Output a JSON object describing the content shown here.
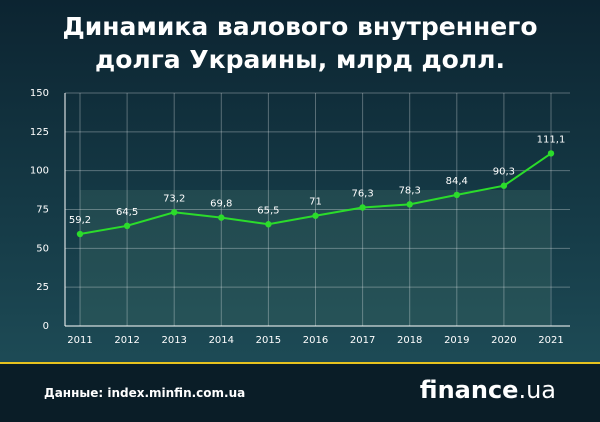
{
  "chart_data": {
    "type": "line",
    "title": "Динамика валового внутреннего долга Украины, млрд долл.",
    "categories": [
      "2011",
      "2012",
      "2013",
      "2014",
      "2015",
      "2016",
      "2017",
      "2018",
      "2019",
      "2020",
      "2021"
    ],
    "series": [
      {
        "color": "#2bdc2b",
        "values": [
          59.2,
          64.5,
          73.2,
          69.8,
          65.5,
          71,
          76.3,
          78.3,
          84.4,
          90.3,
          111.1
        ],
        "value_labels": [
          "59,2",
          "64,5",
          "73,2",
          "69,8",
          "65,5",
          "71",
          "76,3",
          "78,3",
          "84,4",
          "90,3",
          "111,1"
        ]
      }
    ],
    "ylim": [
      0,
      150
    ],
    "yticks": [
      0,
      25,
      50,
      75,
      100,
      125,
      150
    ],
    "grid": true
  },
  "footer": {
    "source": "Данные: index.minfin.com.ua",
    "logo": "finance",
    "logo_suffix": ".ua"
  }
}
